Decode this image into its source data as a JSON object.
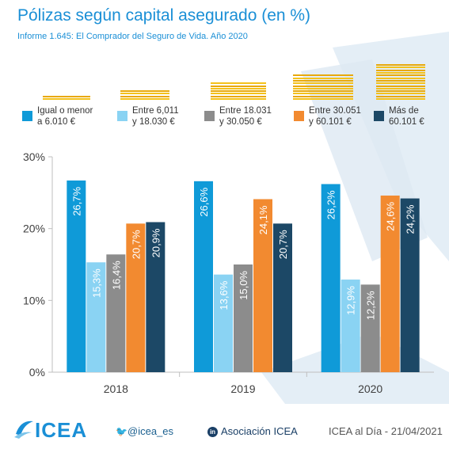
{
  "chart_data": {
    "type": "bar",
    "title": "Pólizas según capital asegurado (en %)",
    "subtitle": "Informe 1.645: El Comprador del Seguro de Vida. Año 2020",
    "categories": [
      "2018",
      "2019",
      "2020"
    ],
    "series": [
      {
        "name": "Igual o menor a 6.010 €",
        "label_lines": [
          "Igual o menor",
          "a 6.010 €"
        ],
        "color": "#0f9ad8",
        "values": [
          26.7,
          26.6,
          26.2
        ],
        "data_labels": [
          "26,7%",
          "26,6%",
          "26,2%"
        ]
      },
      {
        "name": "Entre 6,011 y 18.030 €",
        "label_lines": [
          "Entre 6,011",
          "y 18.030 €"
        ],
        "color": "#8ad3f3",
        "values": [
          15.3,
          13.6,
          12.9
        ],
        "data_labels": [
          "15,3%",
          "13,6%",
          "12,9%"
        ]
      },
      {
        "name": "Entre 18.031 y 30.050 €",
        "label_lines": [
          "Entre 18.031",
          "y 30.050 €"
        ],
        "color": "#8c8c8c",
        "values": [
          16.4,
          15.0,
          12.2
        ],
        "data_labels": [
          "16,4%",
          "15,0%",
          "12,2%"
        ]
      },
      {
        "name": "Entre 30.051 y 60.101 €",
        "label_lines": [
          "Entre 30.051",
          "y 60.101 €"
        ],
        "color": "#f28a30",
        "values": [
          20.7,
          24.1,
          24.6
        ],
        "data_labels": [
          "20,7%",
          "24,1%",
          "24,6%"
        ]
      },
      {
        "name": "Más de 60.101 €",
        "label_lines": [
          "Más de",
          "60.101 €"
        ],
        "color": "#1c4866",
        "values": [
          20.9,
          20.7,
          24.2
        ],
        "data_labels": [
          "20,9%",
          "20,7%",
          "24,2%"
        ]
      }
    ],
    "ylim": [
      0,
      30
    ],
    "yticks": [
      0,
      10,
      20,
      30
    ],
    "ytick_labels": [
      "0%",
      "10%",
      "20%",
      "30%"
    ],
    "grid": false,
    "legend_position": "top",
    "xlabel": "",
    "ylabel": ""
  },
  "footer": {
    "brand": "ICEA",
    "twitter": "@icea_es",
    "linkedin": "Asociación ICEA",
    "date": "ICEA al Día - 21/04/2021"
  },
  "icons": {
    "twitter": "twitter-bird-icon",
    "linkedin": "linkedin-icon",
    "coins": "coin-stack-icon"
  },
  "accent_color": "#1a8fd6"
}
